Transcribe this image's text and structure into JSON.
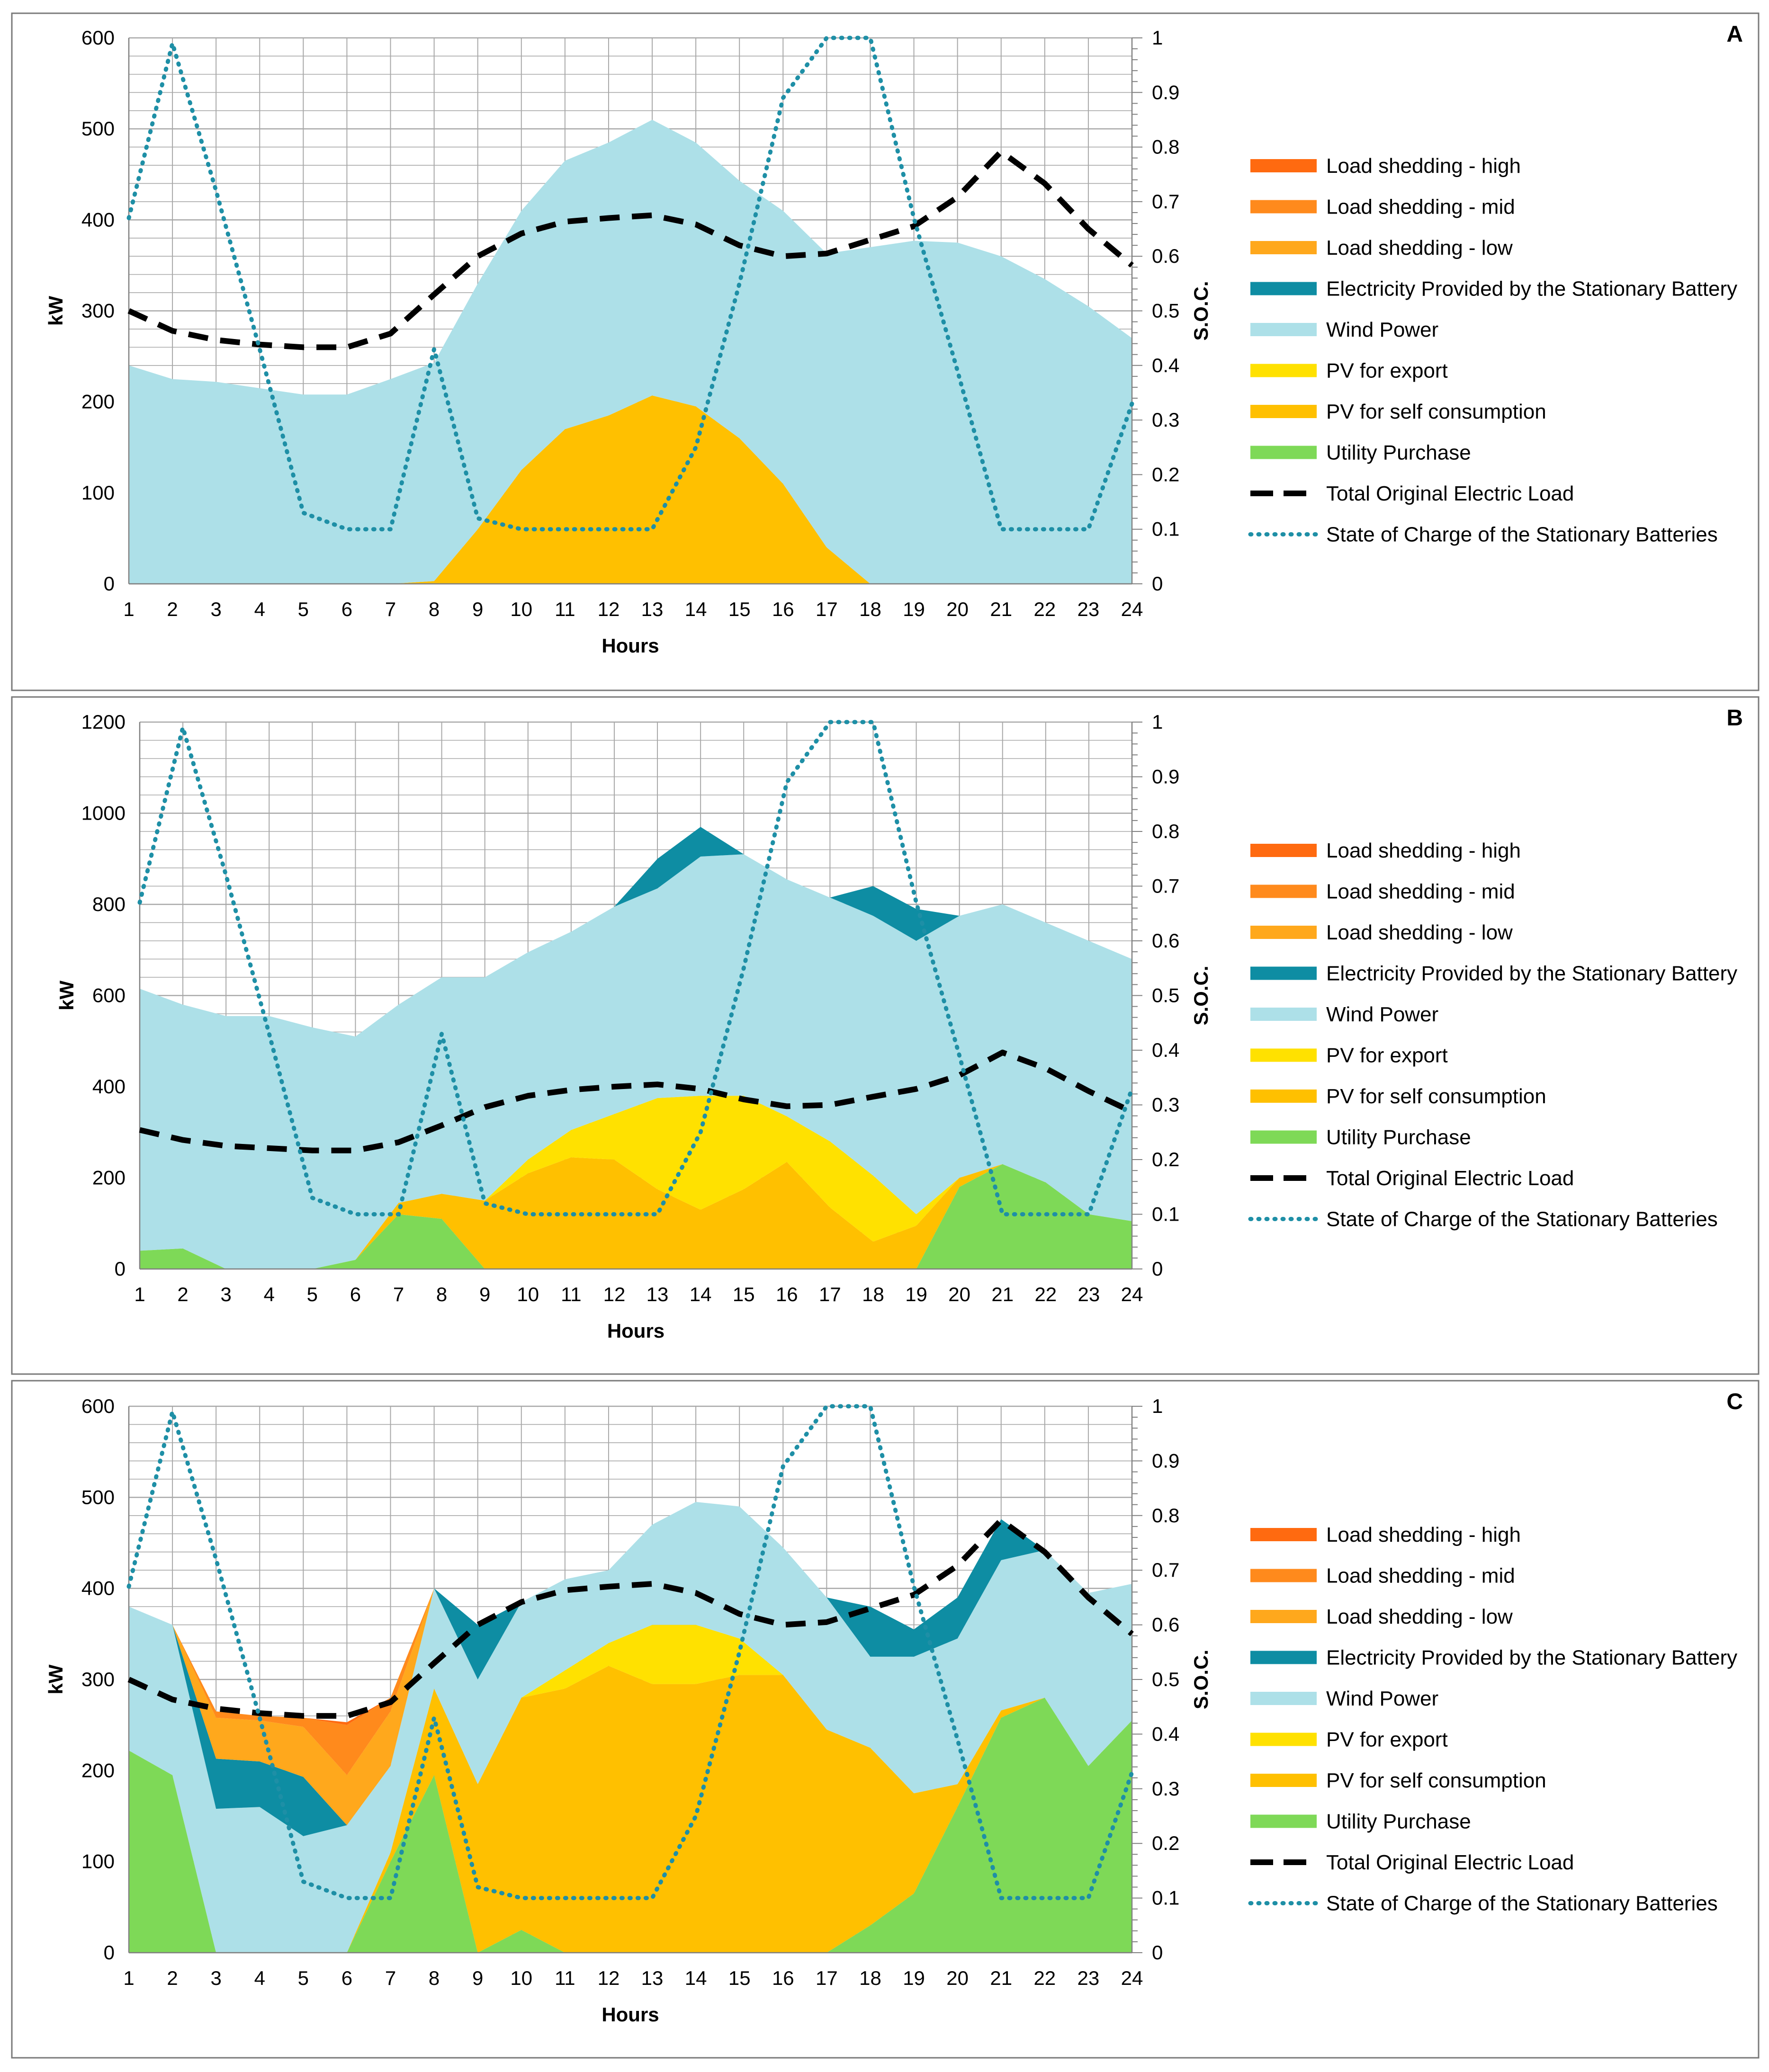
{
  "colors": {
    "shed_high": "#FF6A10",
    "shed_mid": "#FF8A1C",
    "shed_low": "#FFA81C",
    "battery": "#0E8DA3",
    "wind": "#ADE0E8",
    "pv_export": "#FFE100",
    "pv_self": "#FFC000",
    "utility": "#7ED957",
    "load_line": "#000000",
    "soc_line": "#1E8FA6",
    "grid": "#A8A8A8",
    "frame": "#7A7A7A"
  },
  "legend": {
    "shed_high": "Load shedding - high",
    "shed_mid": "Load shedding - mid",
    "shed_low": "Load shedding - low",
    "battery": "Electricity Provided by the Stationary Battery",
    "wind": "Wind Power",
    "pv_export": "PV for export",
    "pv_self": "PV for self consumption",
    "utility": "Utility Purchase",
    "load": "Total Original Electric Load",
    "soc": "State of Charge of the Stationary Batteries"
  },
  "chart_data": [
    {
      "panel": "A",
      "type": "area",
      "xlabel": "Hours",
      "ylabel": "kW",
      "y2label": "S.O.C.",
      "x": [
        1,
        2,
        3,
        4,
        5,
        6,
        7,
        8,
        9,
        10,
        11,
        12,
        13,
        14,
        15,
        16,
        17,
        18,
        19,
        20,
        21,
        22,
        23,
        24
      ],
      "ylim": [
        0,
        600
      ],
      "yticks": [
        0,
        100,
        200,
        300,
        400,
        500,
        600
      ],
      "y2lim": [
        0,
        1
      ],
      "y2ticks": [
        "0",
        "0.1",
        "0.2",
        "0.3",
        "0.4",
        "0.5",
        "0.6",
        "0.7",
        "0.8",
        "0.9",
        "1"
      ],
      "stack_order": [
        "utility",
        "pv_self",
        "pv_export",
        "wind",
        "battery",
        "shed_low",
        "shed_mid",
        "shed_high"
      ],
      "series": {
        "utility": [
          0,
          0,
          0,
          0,
          0,
          0,
          0,
          0,
          0,
          0,
          0,
          0,
          0,
          0,
          0,
          0,
          0,
          0,
          0,
          0,
          0,
          0,
          0,
          0
        ],
        "pv_self": [
          0,
          0,
          0,
          0,
          0,
          0,
          0,
          3,
          60,
          125,
          170,
          185,
          207,
          195,
          160,
          110,
          40,
          0,
          0,
          0,
          0,
          0,
          0,
          0
        ],
        "pv_export": [
          0,
          0,
          0,
          0,
          0,
          0,
          0,
          0,
          0,
          0,
          0,
          0,
          0,
          0,
          0,
          0,
          0,
          0,
          0,
          0,
          0,
          0,
          0,
          0
        ],
        "wind": [
          240,
          225,
          222,
          215,
          208,
          208,
          225,
          240,
          270,
          285,
          295,
          300,
          303,
          290,
          283,
          300,
          323,
          370,
          377,
          375,
          360,
          335,
          305,
          270
        ],
        "battery": [
          0,
          0,
          0,
          0,
          0,
          0,
          0,
          0,
          0,
          0,
          0,
          0,
          0,
          0,
          0,
          0,
          0,
          0,
          0,
          0,
          0,
          0,
          0,
          0
        ],
        "shed_low": [
          0,
          0,
          0,
          0,
          0,
          0,
          0,
          0,
          0,
          0,
          0,
          0,
          0,
          0,
          0,
          0,
          0,
          0,
          0,
          0,
          0,
          0,
          0,
          0
        ],
        "shed_mid": [
          0,
          0,
          0,
          0,
          0,
          0,
          0,
          0,
          0,
          0,
          0,
          0,
          0,
          0,
          0,
          0,
          0,
          0,
          0,
          0,
          0,
          0,
          0,
          0
        ],
        "shed_high": [
          0,
          0,
          0,
          0,
          0,
          0,
          0,
          0,
          0,
          0,
          0,
          0,
          0,
          0,
          0,
          0,
          0,
          0,
          0,
          0,
          0,
          0,
          0,
          0
        ]
      },
      "load": [
        300,
        278,
        268,
        263,
        260,
        260,
        275,
        318,
        360,
        385,
        398,
        402,
        405,
        395,
        372,
        360,
        363,
        378,
        393,
        425,
        475,
        440,
        390,
        350
      ],
      "soc": [
        0.67,
        0.99,
        0.72,
        0.43,
        0.13,
        0.1,
        0.1,
        0.43,
        0.12,
        0.1,
        0.1,
        0.1,
        0.1,
        0.25,
        0.55,
        0.89,
        1,
        1,
        0.67,
        0.39,
        0.1,
        0.1,
        0.1,
        0.33
      ]
    },
    {
      "panel": "B",
      "type": "area",
      "xlabel": "Hours",
      "ylabel": "kW",
      "y2label": "S.O.C.",
      "x": [
        1,
        2,
        3,
        4,
        5,
        6,
        7,
        8,
        9,
        10,
        11,
        12,
        13,
        14,
        15,
        16,
        17,
        18,
        19,
        20,
        21,
        22,
        23,
        24
      ],
      "ylim": [
        0,
        1200
      ],
      "yticks": [
        0,
        200,
        400,
        600,
        800,
        1000,
        1200
      ],
      "y2lim": [
        0,
        1
      ],
      "y2ticks": [
        "0",
        "0.1",
        "0.2",
        "0.3",
        "0.4",
        "0.5",
        "0.6",
        "0.7",
        "0.8",
        "0.9",
        "1"
      ],
      "stack_order": [
        "utility",
        "pv_self",
        "pv_export",
        "wind",
        "battery",
        "shed_low",
        "shed_mid",
        "shed_high"
      ],
      "series": {
        "utility": [
          40,
          45,
          0,
          0,
          0,
          20,
          120,
          110,
          0,
          0,
          0,
          0,
          0,
          0,
          0,
          0,
          0,
          0,
          0,
          180,
          230,
          190,
          120,
          105
        ],
        "pv_self": [
          0,
          0,
          0,
          0,
          0,
          0,
          25,
          55,
          150,
          210,
          245,
          240,
          175,
          130,
          175,
          235,
          135,
          60,
          95,
          20,
          0,
          0,
          0,
          0
        ],
        "pv_export": [
          0,
          0,
          0,
          0,
          0,
          0,
          0,
          0,
          0,
          30,
          60,
          100,
          200,
          250,
          205,
          100,
          145,
          145,
          25,
          0,
          0,
          0,
          0,
          0
        ],
        "wind": [
          575,
          535,
          555,
          555,
          530,
          490,
          435,
          475,
          490,
          455,
          435,
          455,
          460,
          525,
          530,
          520,
          535,
          570,
          600,
          575,
          570,
          570,
          600,
          575
        ],
        "battery": [
          0,
          0,
          0,
          0,
          0,
          0,
          0,
          0,
          0,
          0,
          0,
          0,
          65,
          65,
          0,
          0,
          0,
          65,
          70,
          0,
          0,
          0,
          0,
          0
        ],
        "shed_low": [
          0,
          0,
          0,
          0,
          0,
          0,
          0,
          0,
          0,
          0,
          0,
          0,
          0,
          0,
          0,
          0,
          0,
          0,
          0,
          0,
          0,
          0,
          0,
          0
        ],
        "shed_mid": [
          0,
          0,
          0,
          0,
          0,
          0,
          0,
          0,
          0,
          0,
          0,
          0,
          0,
          0,
          0,
          0,
          0,
          0,
          0,
          0,
          0,
          0,
          0,
          0
        ],
        "shed_high": [
          0,
          0,
          0,
          0,
          0,
          0,
          0,
          0,
          0,
          0,
          0,
          0,
          0,
          0,
          0,
          0,
          0,
          0,
          0,
          0,
          0,
          0,
          0,
          0
        ]
      },
      "load": [
        305,
        283,
        270,
        265,
        260,
        260,
        278,
        315,
        355,
        380,
        393,
        400,
        405,
        395,
        372,
        357,
        360,
        378,
        395,
        425,
        475,
        440,
        390,
        345
      ],
      "soc": [
        0.67,
        0.99,
        0.72,
        0.43,
        0.13,
        0.1,
        0.1,
        0.43,
        0.12,
        0.1,
        0.1,
        0.1,
        0.1,
        0.25,
        0.55,
        0.89,
        1,
        1,
        0.67,
        0.39,
        0.1,
        0.1,
        0.1,
        0.33
      ]
    },
    {
      "panel": "C",
      "type": "area",
      "xlabel": "Hours",
      "ylabel": "kW",
      "y2label": "S.O.C.",
      "x": [
        1,
        2,
        3,
        4,
        5,
        6,
        7,
        8,
        9,
        10,
        11,
        12,
        13,
        14,
        15,
        16,
        17,
        18,
        19,
        20,
        21,
        22,
        23,
        24
      ],
      "ylim": [
        0,
        600
      ],
      "yticks": [
        0,
        100,
        200,
        300,
        400,
        500,
        600
      ],
      "y2lim": [
        0,
        1
      ],
      "y2ticks": [
        "0",
        "0.1",
        "0.2",
        "0.3",
        "0.4",
        "0.5",
        "0.6",
        "0.7",
        "0.8",
        "0.9",
        "1"
      ],
      "stack_order": [
        "utility",
        "pv_self",
        "pv_export",
        "wind",
        "battery",
        "shed_low",
        "shed_mid",
        "shed_high"
      ],
      "series": {
        "utility": [
          222,
          195,
          0,
          0,
          0,
          0,
          100,
          195,
          0,
          25,
          0,
          0,
          0,
          0,
          0,
          0,
          0,
          30,
          65,
          160,
          258,
          280,
          205,
          255
        ],
        "pv_self": [
          0,
          0,
          0,
          0,
          0,
          0,
          10,
          95,
          185,
          255,
          290,
          315,
          295,
          295,
          305,
          305,
          245,
          195,
          110,
          25,
          8,
          0,
          0,
          0
        ],
        "pv_export": [
          0,
          0,
          0,
          0,
          0,
          0,
          0,
          0,
          0,
          0,
          20,
          25,
          65,
          65,
          40,
          0,
          0,
          0,
          0,
          0,
          0,
          0,
          0,
          0
        ],
        "wind": [
          158,
          165,
          158,
          160,
          128,
          140,
          95,
          110,
          115,
          105,
          100,
          80,
          110,
          135,
          145,
          140,
          145,
          100,
          150,
          160,
          165,
          162,
          190,
          150
        ],
        "battery": [
          0,
          0,
          55,
          50,
          65,
          0,
          0,
          0,
          60,
          0,
          0,
          0,
          0,
          0,
          0,
          0,
          0,
          55,
          30,
          45,
          45,
          0,
          0,
          0
        ],
        "shed_low": [
          0,
          0,
          45,
          45,
          55,
          55,
          60,
          0,
          0,
          0,
          0,
          0,
          0,
          0,
          0,
          0,
          0,
          0,
          0,
          0,
          0,
          0,
          0,
          0
        ],
        "shed_mid": [
          0,
          0,
          7,
          5,
          10,
          55,
          15,
          0,
          0,
          0,
          0,
          0,
          0,
          0,
          0,
          0,
          0,
          0,
          0,
          0,
          0,
          0,
          0,
          0
        ],
        "shed_high": [
          0,
          0,
          0,
          0,
          0,
          3,
          0,
          0,
          0,
          0,
          0,
          0,
          0,
          0,
          0,
          0,
          0,
          0,
          0,
          0,
          0,
          0,
          0,
          0
        ]
      },
      "load": [
        300,
        278,
        268,
        263,
        260,
        260,
        275,
        318,
        360,
        385,
        398,
        402,
        405,
        395,
        372,
        360,
        363,
        378,
        393,
        425,
        475,
        440,
        390,
        350
      ],
      "soc": [
        0.67,
        0.99,
        0.72,
        0.43,
        0.13,
        0.1,
        0.1,
        0.43,
        0.12,
        0.1,
        0.1,
        0.1,
        0.1,
        0.25,
        0.55,
        0.89,
        1,
        1,
        0.67,
        0.39,
        0.1,
        0.1,
        0.1,
        0.33
      ]
    }
  ]
}
